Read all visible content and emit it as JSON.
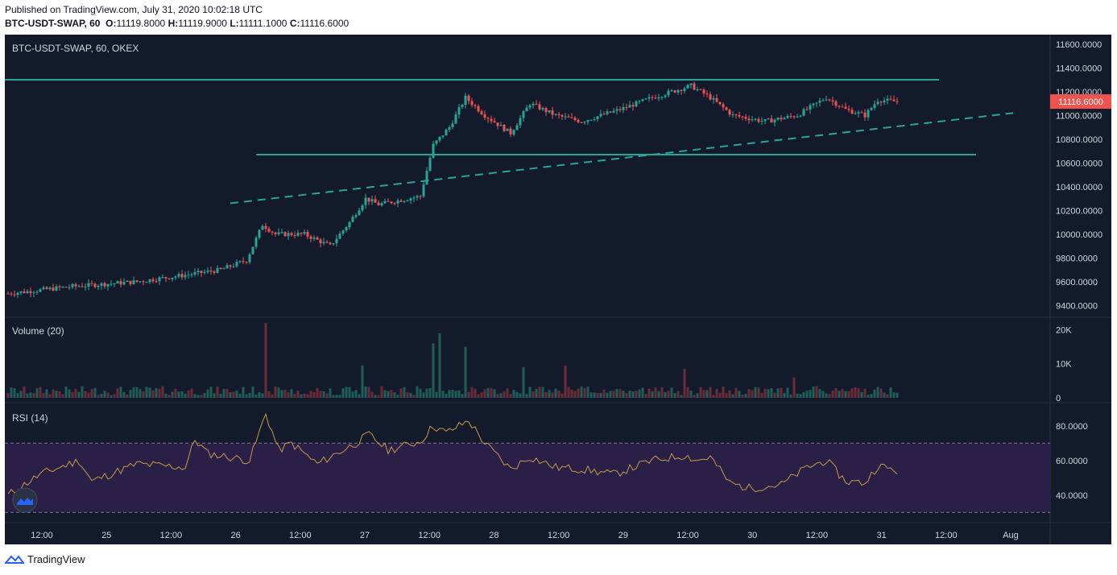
{
  "header": {
    "published": "Published on TradingView.com, July 31, 2020 10:02:18 UTC",
    "symbol": "BTC-USDT-SWAP, 60",
    "o_label": "O:",
    "o_value": "11119.8000",
    "h_label": "H:",
    "h_value": "11119.9000",
    "l_label": "L:",
    "l_value": "11111.1000",
    "c_label": "C:",
    "c_value": "11116.6000"
  },
  "footer": {
    "brand": "TradingView"
  },
  "colors": {
    "up": "#26a69a",
    "down": "#ef5350",
    "line": "#26a69a",
    "rsi_line": "#c69a46",
    "rsi_band": "#2a1f47",
    "background": "#131a2b"
  },
  "chart_data": [
    {
      "type": "candlestick",
      "title": "BTC-USDT-SWAP, 60, OKEX",
      "price_axis": [
        "11600.0000",
        "11400.0000",
        "11200.0000",
        "11000.0000",
        "10800.0000",
        "10600.0000",
        "10400.0000",
        "10200.0000",
        "10000.0000",
        "9800.0000",
        "9600.0000",
        "9400.0000"
      ],
      "ylim": [
        9300,
        11680
      ],
      "last_price_label": "11116.6000",
      "x_ticks": [
        "12:00",
        "25",
        "12:00",
        "26",
        "12:00",
        "27",
        "12:00",
        "28",
        "12:00",
        "29",
        "12:00",
        "30",
        "12:00",
        "31",
        "12:00",
        "Aug"
      ],
      "anchors": [
        {
          "i": 0,
          "v": 9500
        },
        {
          "i": 20,
          "v": 9560
        },
        {
          "i": 40,
          "v": 9600
        },
        {
          "i": 56,
          "v": 9660
        },
        {
          "i": 66,
          "v": 9700
        },
        {
          "i": 74,
          "v": 9780
        },
        {
          "i": 79,
          "v": 10080
        },
        {
          "i": 83,
          "v": 10000
        },
        {
          "i": 92,
          "v": 10000
        },
        {
          "i": 100,
          "v": 9900
        },
        {
          "i": 106,
          "v": 10100
        },
        {
          "i": 111,
          "v": 10300
        },
        {
          "i": 115,
          "v": 10250
        },
        {
          "i": 128,
          "v": 10320
        },
        {
          "i": 132,
          "v": 10750
        },
        {
          "i": 137,
          "v": 10900
        },
        {
          "i": 142,
          "v": 11150
        },
        {
          "i": 148,
          "v": 11000
        },
        {
          "i": 156,
          "v": 10850
        },
        {
          "i": 162,
          "v": 11100
        },
        {
          "i": 170,
          "v": 11000
        },
        {
          "i": 178,
          "v": 10950
        },
        {
          "i": 190,
          "v": 11050
        },
        {
          "i": 200,
          "v": 11150
        },
        {
          "i": 212,
          "v": 11250
        },
        {
          "i": 218,
          "v": 11150
        },
        {
          "i": 225,
          "v": 11000
        },
        {
          "i": 235,
          "v": 10950
        },
        {
          "i": 245,
          "v": 11000
        },
        {
          "i": 254,
          "v": 11150
        },
        {
          "i": 260,
          "v": 11050
        },
        {
          "i": 266,
          "v": 11000
        },
        {
          "i": 270,
          "v": 11130
        },
        {
          "i": 276,
          "v": 11116.6
        }
      ],
      "levels": [
        {
          "name": "resistance",
          "value": 11300,
          "style": "solid"
        },
        {
          "name": "support",
          "value": 10670,
          "style": "solid"
        }
      ],
      "trendline": {
        "style": "dashed",
        "from": {
          "x": "Jul 26 ~09:00",
          "y": 10260
        },
        "to": {
          "x": "Jul 31 ~20:00",
          "y": 11020
        }
      }
    },
    {
      "type": "bar",
      "title": "Volume (20)",
      "y_axis": [
        "20K",
        "10K",
        "0"
      ],
      "ylim": [
        0,
        22000
      ],
      "spikes": [
        {
          "i": 80,
          "v": 22000
        },
        {
          "i": 132,
          "v": 16000
        },
        {
          "i": 134,
          "v": 19000
        },
        {
          "i": 142,
          "v": 15000
        },
        {
          "i": 110,
          "v": 9500
        },
        {
          "i": 160,
          "v": 9000
        },
        {
          "i": 173,
          "v": 9500
        },
        {
          "i": 210,
          "v": 8500
        },
        {
          "i": 244,
          "v": 6000
        }
      ]
    },
    {
      "type": "line",
      "title": "RSI (14)",
      "y_axis": [
        "80.0000",
        "60.0000",
        "40.0000"
      ],
      "ylim": [
        25,
        92
      ],
      "band": [
        30,
        70
      ],
      "anchors": [
        {
          "i": 0,
          "v": 40
        },
        {
          "i": 10,
          "v": 52
        },
        {
          "i": 22,
          "v": 60
        },
        {
          "i": 26,
          "v": 48
        },
        {
          "i": 40,
          "v": 58
        },
        {
          "i": 55,
          "v": 56
        },
        {
          "i": 58,
          "v": 72
        },
        {
          "i": 62,
          "v": 64
        },
        {
          "i": 75,
          "v": 60
        },
        {
          "i": 80,
          "v": 87
        },
        {
          "i": 84,
          "v": 66
        },
        {
          "i": 88,
          "v": 70
        },
        {
          "i": 96,
          "v": 58
        },
        {
          "i": 108,
          "v": 70
        },
        {
          "i": 112,
          "v": 75
        },
        {
          "i": 118,
          "v": 66
        },
        {
          "i": 128,
          "v": 71
        },
        {
          "i": 132,
          "v": 80
        },
        {
          "i": 136,
          "v": 76
        },
        {
          "i": 143,
          "v": 83
        },
        {
          "i": 148,
          "v": 70
        },
        {
          "i": 156,
          "v": 55
        },
        {
          "i": 162,
          "v": 62
        },
        {
          "i": 170,
          "v": 56
        },
        {
          "i": 178,
          "v": 55
        },
        {
          "i": 188,
          "v": 52
        },
        {
          "i": 194,
          "v": 56
        },
        {
          "i": 200,
          "v": 60
        },
        {
          "i": 210,
          "v": 63
        },
        {
          "i": 214,
          "v": 60
        },
        {
          "i": 218,
          "v": 62
        },
        {
          "i": 224,
          "v": 47
        },
        {
          "i": 230,
          "v": 44
        },
        {
          "i": 240,
          "v": 46
        },
        {
          "i": 248,
          "v": 56
        },
        {
          "i": 254,
          "v": 60
        },
        {
          "i": 260,
          "v": 48
        },
        {
          "i": 266,
          "v": 47
        },
        {
          "i": 270,
          "v": 57
        },
        {
          "i": 276,
          "v": 54
        }
      ]
    }
  ]
}
